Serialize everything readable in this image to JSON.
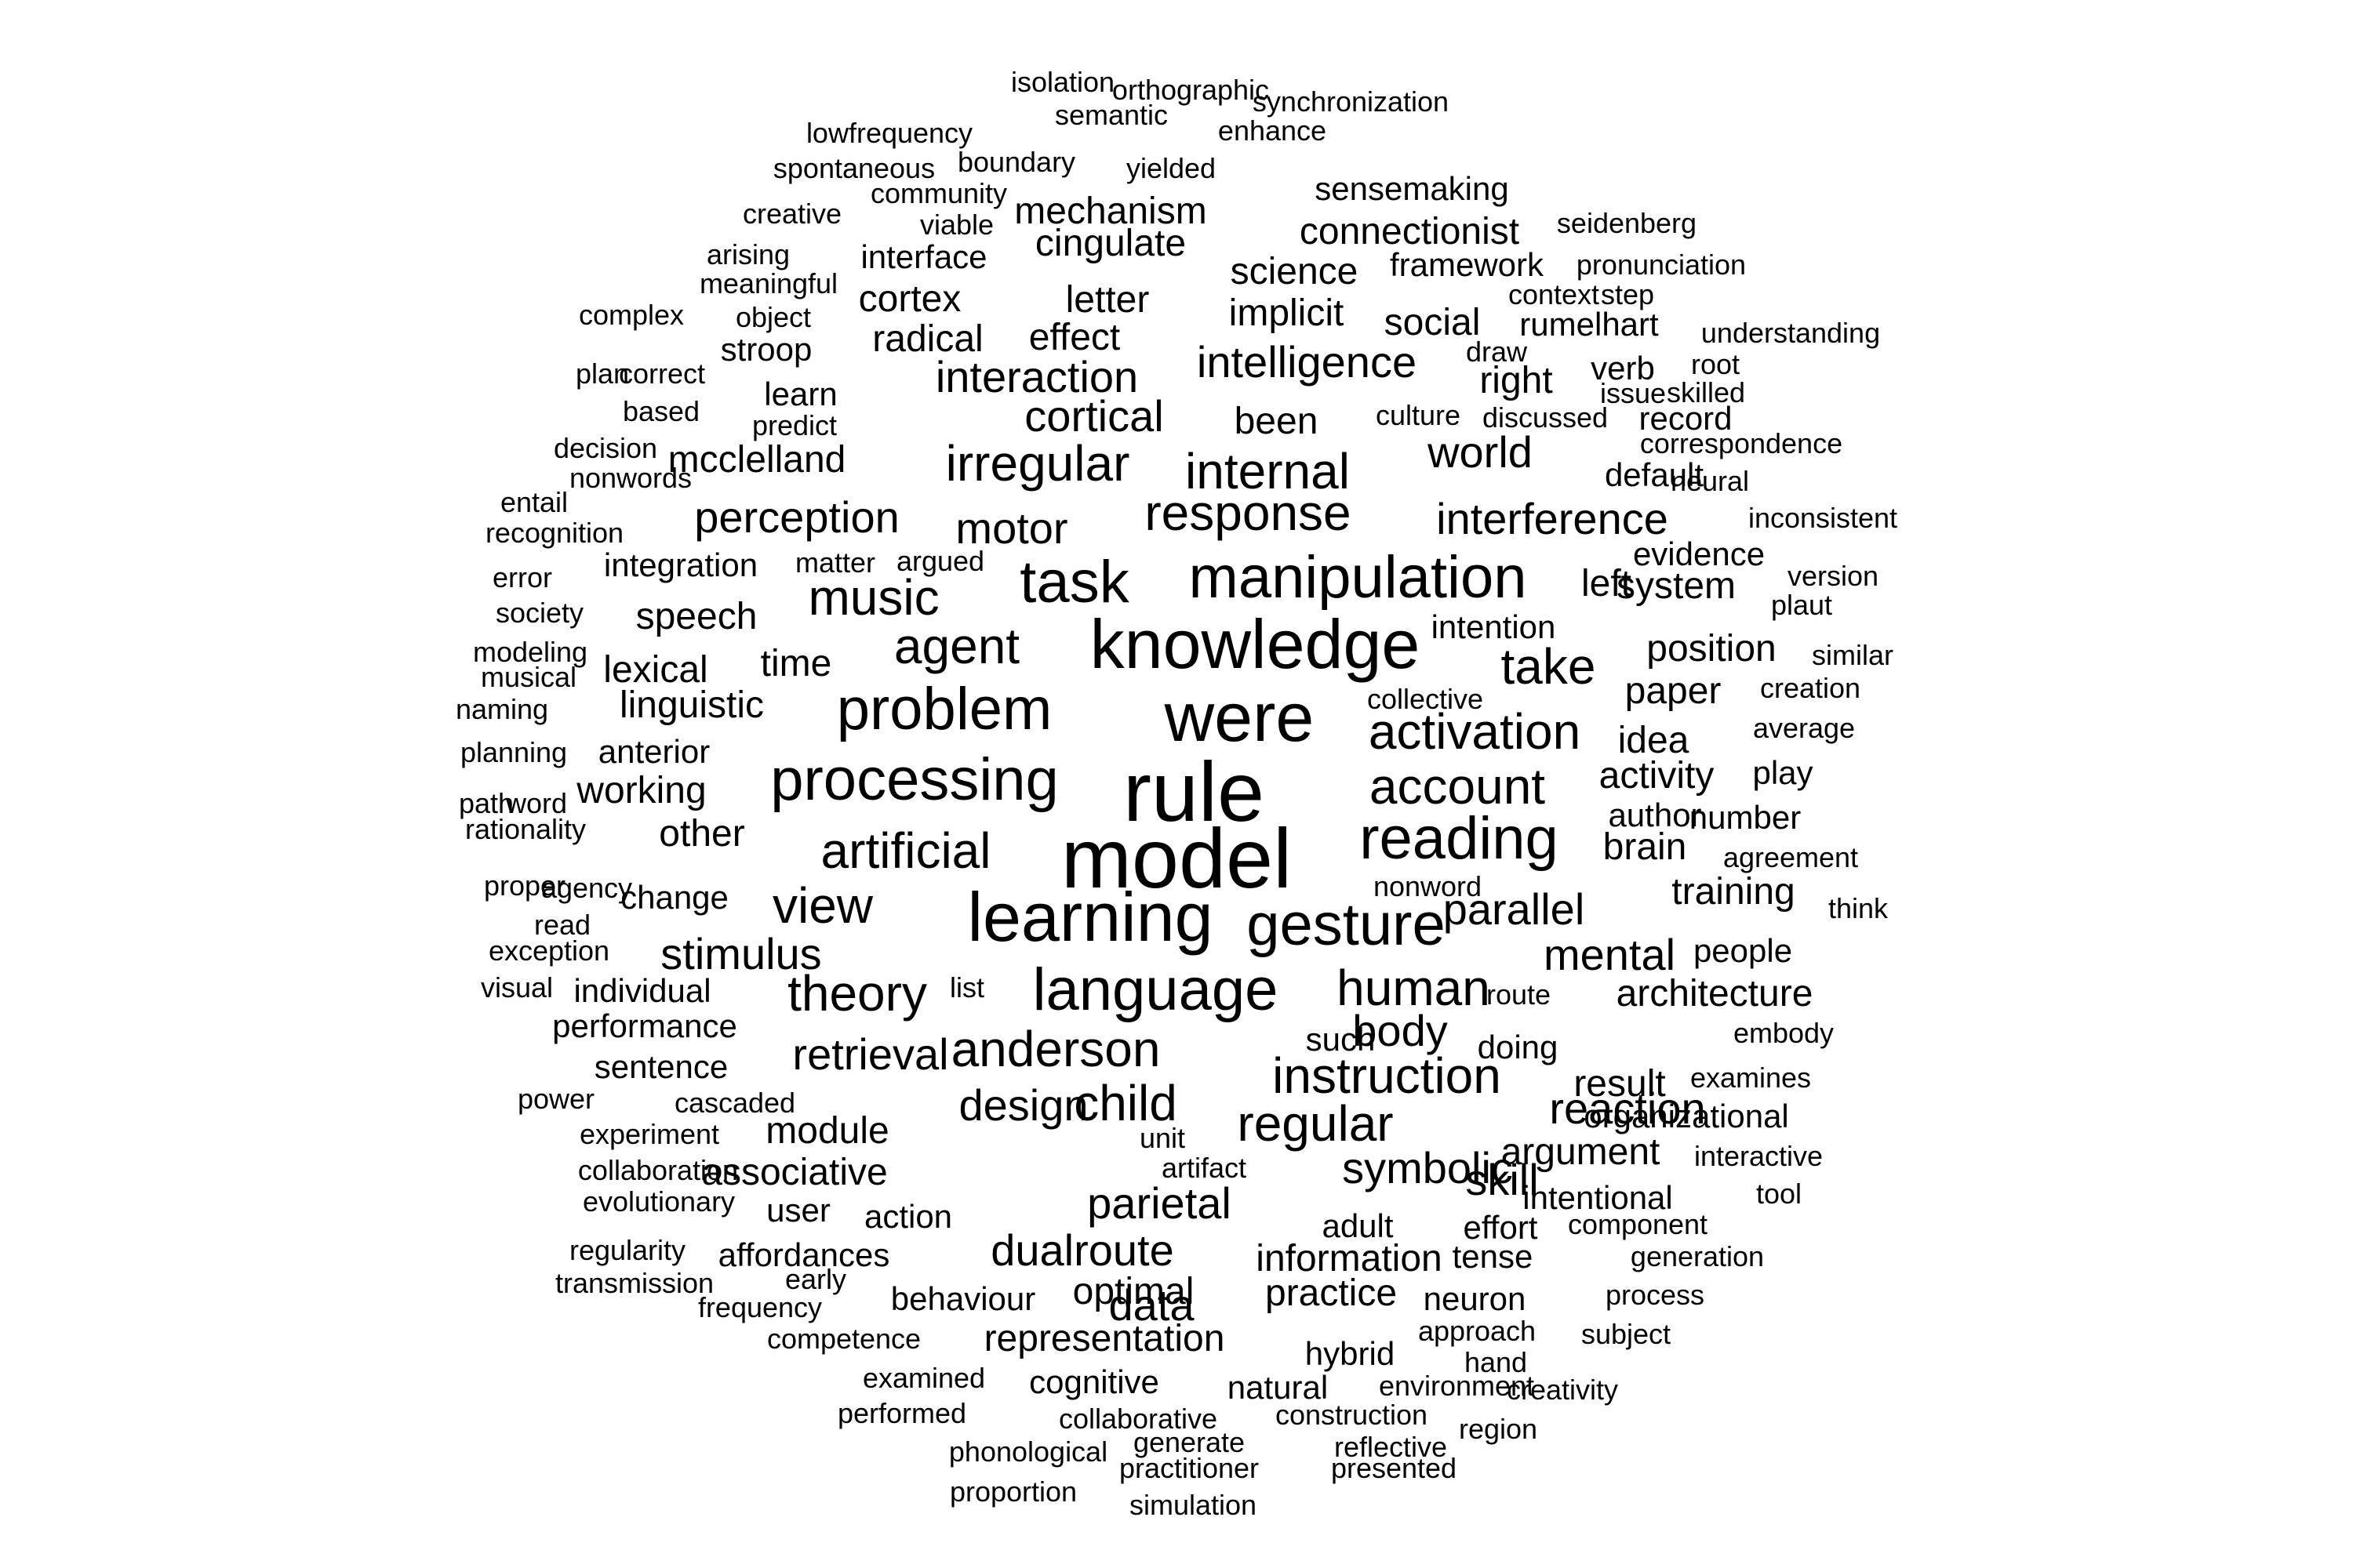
{
  "colors": {
    "background": "#ffffff",
    "text": "#000000"
  },
  "words": [
    {
      "text": "rule",
      "size": 10
    },
    {
      "text": "model",
      "size": 10
    },
    {
      "text": "were",
      "size": 9
    },
    {
      "text": "knowledge",
      "size": 9
    },
    {
      "text": "learning",
      "size": 9
    },
    {
      "text": "gesture",
      "size": 8
    },
    {
      "text": "manipulation",
      "size": 8
    },
    {
      "text": "task",
      "size": 8
    },
    {
      "text": "processing",
      "size": 8
    },
    {
      "text": "language",
      "size": 8
    },
    {
      "text": "problem",
      "size": 8
    },
    {
      "text": "reading",
      "size": 8
    },
    {
      "text": "account",
      "size": 7
    },
    {
      "text": "agent",
      "size": 7
    },
    {
      "text": "anderson",
      "size": 7
    },
    {
      "text": "response",
      "size": 7
    },
    {
      "text": "activation",
      "size": 7
    },
    {
      "text": "instruction",
      "size": 7
    },
    {
      "text": "theory",
      "size": 7
    },
    {
      "text": "artificial",
      "size": 7
    },
    {
      "text": "human",
      "size": 7
    },
    {
      "text": "irregular",
      "size": 7
    },
    {
      "text": "regular",
      "size": 7
    },
    {
      "text": "child",
      "size": 7
    },
    {
      "text": "take",
      "size": 7
    },
    {
      "text": "view",
      "size": 7
    },
    {
      "text": "music",
      "size": 7
    },
    {
      "text": "internal",
      "size": 7
    },
    {
      "text": "intelligence",
      "size": 6
    },
    {
      "text": "interaction",
      "size": 6
    },
    {
      "text": "perception",
      "size": 6
    },
    {
      "text": "interference",
      "size": 6
    },
    {
      "text": "motor",
      "size": 6
    },
    {
      "text": "cortical",
      "size": 6
    },
    {
      "text": "world",
      "size": 6
    },
    {
      "text": "parallel",
      "size": 6
    },
    {
      "text": "mental",
      "size": 6
    },
    {
      "text": "stimulus",
      "size": 6
    },
    {
      "text": "retrieval",
      "size": 6
    },
    {
      "text": "design",
      "size": 6
    },
    {
      "text": "body",
      "size": 6
    },
    {
      "text": "reaction",
      "size": 6
    },
    {
      "text": "skill",
      "size": 6
    },
    {
      "text": "parietal",
      "size": 6
    },
    {
      "text": "dualroute",
      "size": 6
    },
    {
      "text": "symbolic",
      "size": 6
    },
    {
      "text": "data",
      "size": 6
    },
    {
      "text": "associative",
      "size": 5
    },
    {
      "text": "information",
      "size": 5
    },
    {
      "text": "representation",
      "size": 5
    },
    {
      "text": "practice",
      "size": 5
    },
    {
      "text": "optimal",
      "size": 5
    },
    {
      "text": "result",
      "size": 5
    },
    {
      "text": "been",
      "size": 5
    },
    {
      "text": "time",
      "size": 5
    },
    {
      "text": "brain",
      "size": 5
    },
    {
      "text": "right",
      "size": 5
    },
    {
      "text": "radical",
      "size": 5
    },
    {
      "text": "effect",
      "size": 5
    },
    {
      "text": "implicit",
      "size": 5
    },
    {
      "text": "science",
      "size": 5
    },
    {
      "text": "social",
      "size": 5
    },
    {
      "text": "mcclelland",
      "size": 5
    },
    {
      "text": "letter",
      "size": 5
    },
    {
      "text": "cortex",
      "size": 5
    },
    {
      "text": "mechanism",
      "size": 5
    },
    {
      "text": "cingulate",
      "size": 5
    },
    {
      "text": "connectionist",
      "size": 5
    },
    {
      "text": "speech",
      "size": 5
    },
    {
      "text": "lexical",
      "size": 5
    },
    {
      "text": "linguistic",
      "size": 5
    },
    {
      "text": "working",
      "size": 5
    },
    {
      "text": "other",
      "size": 5
    },
    {
      "text": "position",
      "size": 5
    },
    {
      "text": "paper",
      "size": 5
    },
    {
      "text": "activity",
      "size": 5
    },
    {
      "text": "module",
      "size": 5
    },
    {
      "text": "architecture",
      "size": 5
    },
    {
      "text": "argument",
      "size": 5
    },
    {
      "text": "left",
      "size": 5
    },
    {
      "text": "system",
      "size": 5
    },
    {
      "text": "training",
      "size": 5
    },
    {
      "text": "idea",
      "size": 5
    },
    {
      "text": "integration",
      "size": 4
    },
    {
      "text": "anterior",
      "size": 4
    },
    {
      "text": "change",
      "size": 4
    },
    {
      "text": "performance",
      "size": 4
    },
    {
      "text": "sentence",
      "size": 4
    },
    {
      "text": "organizational",
      "size": 4
    },
    {
      "text": "intentional",
      "size": 4
    },
    {
      "text": "action",
      "size": 4
    },
    {
      "text": "affordances",
      "size": 4
    },
    {
      "text": "behaviour",
      "size": 4
    },
    {
      "text": "cognitive",
      "size": 4
    },
    {
      "text": "natural",
      "size": 4
    },
    {
      "text": "hybrid",
      "size": 4
    },
    {
      "text": "neuron",
      "size": 4
    },
    {
      "text": "tense",
      "size": 4
    },
    {
      "text": "effort",
      "size": 4
    },
    {
      "text": "adult",
      "size": 4
    },
    {
      "text": "such",
      "size": 4
    },
    {
      "text": "doing",
      "size": 4
    },
    {
      "text": "author",
      "size": 4
    },
    {
      "text": "number",
      "size": 4
    },
    {
      "text": "evidence",
      "size": 4
    },
    {
      "text": "intention",
      "size": 4
    },
    {
      "text": "default",
      "size": 4
    },
    {
      "text": "record",
      "size": 4
    },
    {
      "text": "verb",
      "size": 4
    },
    {
      "text": "rumelhart",
      "size": 4
    },
    {
      "text": "framework",
      "size": 4
    },
    {
      "text": "sensemaking",
      "size": 4
    },
    {
      "text": "interface",
      "size": 4
    },
    {
      "text": "learn",
      "size": 4
    },
    {
      "text": "stroop",
      "size": 4
    },
    {
      "text": "individual",
      "size": 4
    },
    {
      "text": "people",
      "size": 4
    },
    {
      "text": "play",
      "size": 4
    },
    {
      "text": "user",
      "size": 4
    },
    {
      "text": "collective",
      "size": 3
    },
    {
      "text": "nonword",
      "size": 3
    },
    {
      "text": "route",
      "size": 3
    },
    {
      "text": "list",
      "size": 3
    },
    {
      "text": "unit",
      "size": 3
    },
    {
      "text": "artifact",
      "size": 3
    },
    {
      "text": "matter",
      "size": 3
    },
    {
      "text": "argued",
      "size": 3
    },
    {
      "text": "culture",
      "size": 3
    },
    {
      "text": "discussed",
      "size": 3
    },
    {
      "text": "draw",
      "size": 3
    },
    {
      "text": "context",
      "size": 3
    },
    {
      "text": "step",
      "size": 3
    },
    {
      "text": "pronunciation",
      "size": 3
    },
    {
      "text": "seidenberg",
      "size": 3
    },
    {
      "text": "understanding",
      "size": 3
    },
    {
      "text": "root",
      "size": 3
    },
    {
      "text": "issue",
      "size": 3
    },
    {
      "text": "skilled",
      "size": 3
    },
    {
      "text": "correspondence",
      "size": 3
    },
    {
      "text": "neural",
      "size": 3
    },
    {
      "text": "inconsistent",
      "size": 3
    },
    {
      "text": "version",
      "size": 3
    },
    {
      "text": "plaut",
      "size": 3
    },
    {
      "text": "similar",
      "size": 3
    },
    {
      "text": "creation",
      "size": 3
    },
    {
      "text": "average",
      "size": 3
    },
    {
      "text": "agreement",
      "size": 3
    },
    {
      "text": "think",
      "size": 3
    },
    {
      "text": "embody",
      "size": 3
    },
    {
      "text": "examines",
      "size": 3
    },
    {
      "text": "interactive",
      "size": 3
    },
    {
      "text": "tool",
      "size": 3
    },
    {
      "text": "component",
      "size": 3
    },
    {
      "text": "generation",
      "size": 3
    },
    {
      "text": "process",
      "size": 3
    },
    {
      "text": "subject",
      "size": 3
    },
    {
      "text": "approach",
      "size": 3
    },
    {
      "text": "hand",
      "size": 3
    },
    {
      "text": "environment",
      "size": 3
    },
    {
      "text": "creativity",
      "size": 3
    },
    {
      "text": "region",
      "size": 3
    },
    {
      "text": "construction",
      "size": 3
    },
    {
      "text": "reflective",
      "size": 3
    },
    {
      "text": "presented",
      "size": 3
    },
    {
      "text": "collaborative",
      "size": 3
    },
    {
      "text": "generate",
      "size": 3
    },
    {
      "text": "practitioner",
      "size": 3
    },
    {
      "text": "simulation",
      "size": 3
    },
    {
      "text": "phonological",
      "size": 3
    },
    {
      "text": "proportion",
      "size": 3
    },
    {
      "text": "performed",
      "size": 3
    },
    {
      "text": "examined",
      "size": 3
    },
    {
      "text": "competence",
      "size": 3
    },
    {
      "text": "frequency",
      "size": 3
    },
    {
      "text": "early",
      "size": 3
    },
    {
      "text": "transmission",
      "size": 3
    },
    {
      "text": "regularity",
      "size": 3
    },
    {
      "text": "evolutionary",
      "size": 3
    },
    {
      "text": "collaboration",
      "size": 3
    },
    {
      "text": "experiment",
      "size": 3
    },
    {
      "text": "cascaded",
      "size": 3
    },
    {
      "text": "power",
      "size": 3
    },
    {
      "text": "visual",
      "size": 3
    },
    {
      "text": "exception",
      "size": 3
    },
    {
      "text": "read",
      "size": 3
    },
    {
      "text": "proper",
      "size": 3
    },
    {
      "text": "agency",
      "size": 3
    },
    {
      "text": "rationality",
      "size": 3
    },
    {
      "text": "word",
      "size": 3
    },
    {
      "text": "path",
      "size": 3
    },
    {
      "text": "planning",
      "size": 3
    },
    {
      "text": "naming",
      "size": 3
    },
    {
      "text": "musical",
      "size": 3
    },
    {
      "text": "modeling",
      "size": 3
    },
    {
      "text": "society",
      "size": 3
    },
    {
      "text": "error",
      "size": 3
    },
    {
      "text": "recognition",
      "size": 3
    },
    {
      "text": "entail",
      "size": 3
    },
    {
      "text": "nonwords",
      "size": 3
    },
    {
      "text": "decision",
      "size": 3
    },
    {
      "text": "based",
      "size": 3
    },
    {
      "text": "plan",
      "size": 3
    },
    {
      "text": "predict",
      "size": 3
    },
    {
      "text": "correct",
      "size": 3
    },
    {
      "text": "complex",
      "size": 3
    },
    {
      "text": "object",
      "size": 3
    },
    {
      "text": "meaningful",
      "size": 3
    },
    {
      "text": "arising",
      "size": 3
    },
    {
      "text": "creative",
      "size": 3
    },
    {
      "text": "viable",
      "size": 3
    },
    {
      "text": "community",
      "size": 3
    },
    {
      "text": "spontaneous",
      "size": 3
    },
    {
      "text": "boundary",
      "size": 3
    },
    {
      "text": "lowfrequency",
      "size": 3
    },
    {
      "text": "yielded",
      "size": 3
    },
    {
      "text": "semantic",
      "size": 3
    },
    {
      "text": "isolation",
      "size": 3
    },
    {
      "text": "orthographic",
      "size": 3
    },
    {
      "text": "enhance",
      "size": 3
    },
    {
      "text": "synchronization",
      "size": 3
    }
  ]
}
